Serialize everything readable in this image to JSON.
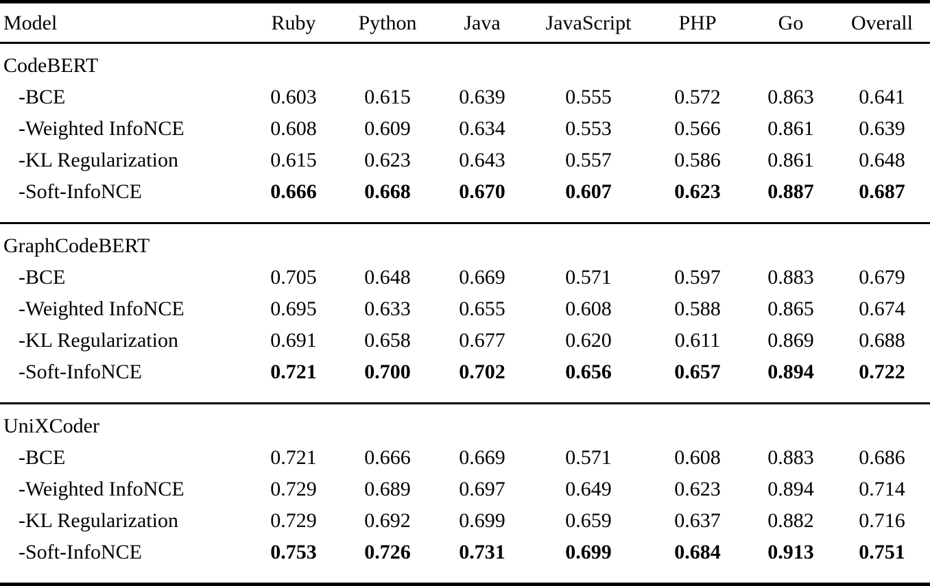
{
  "chart_data": {
    "type": "table",
    "columns": [
      "Model",
      "Ruby",
      "Python",
      "Java",
      "JavaScript",
      "PHP",
      "Go",
      "Overall"
    ],
    "sections": [
      {
        "group": "CodeBERT",
        "rows": [
          {
            "label": "-BCE",
            "values": [
              "0.603",
              "0.615",
              "0.639",
              "0.555",
              "0.572",
              "0.863",
              "0.641"
            ],
            "bold": false
          },
          {
            "label": "-Weighted InfoNCE",
            "values": [
              "0.608",
              "0.609",
              "0.634",
              "0.553",
              "0.566",
              "0.861",
              "0.639"
            ],
            "bold": false
          },
          {
            "label": "-KL Regularization",
            "values": [
              "0.615",
              "0.623",
              "0.643",
              "0.557",
              "0.586",
              "0.861",
              "0.648"
            ],
            "bold": false
          },
          {
            "label": "-Soft-InfoNCE",
            "values": [
              "0.666",
              "0.668",
              "0.670",
              "0.607",
              "0.623",
              "0.887",
              "0.687"
            ],
            "bold": true
          }
        ]
      },
      {
        "group": "GraphCodeBERT",
        "rows": [
          {
            "label": "-BCE",
            "values": [
              "0.705",
              "0.648",
              "0.669",
              "0.571",
              "0.597",
              "0.883",
              "0.679"
            ],
            "bold": false
          },
          {
            "label": "-Weighted InfoNCE",
            "values": [
              "0.695",
              "0.633",
              "0.655",
              "0.608",
              "0.588",
              "0.865",
              "0.674"
            ],
            "bold": false
          },
          {
            "label": "-KL Regularization",
            "values": [
              "0.691",
              "0.658",
              "0.677",
              "0.620",
              "0.611",
              "0.869",
              "0.688"
            ],
            "bold": false
          },
          {
            "label": "-Soft-InfoNCE",
            "values": [
              "0.721",
              "0.700",
              "0.702",
              "0.656",
              "0.657",
              "0.894",
              "0.722"
            ],
            "bold": true
          }
        ]
      },
      {
        "group": "UniXCoder",
        "rows": [
          {
            "label": "-BCE",
            "values": [
              "0.721",
              "0.666",
              "0.669",
              "0.571",
              "0.608",
              "0.883",
              "0.686"
            ],
            "bold": false
          },
          {
            "label": "-Weighted InfoNCE",
            "values": [
              "0.729",
              "0.689",
              "0.697",
              "0.649",
              "0.623",
              "0.894",
              "0.714"
            ],
            "bold": false
          },
          {
            "label": "-KL Regularization",
            "values": [
              "0.729",
              "0.692",
              "0.699",
              "0.659",
              "0.637",
              "0.882",
              "0.716"
            ],
            "bold": false
          },
          {
            "label": "-Soft-InfoNCE",
            "values": [
              "0.753",
              "0.726",
              "0.731",
              "0.699",
              "0.684",
              "0.913",
              "0.751"
            ],
            "bold": true
          }
        ]
      }
    ],
    "layout": {
      "rule_color": "#000000",
      "background": "#ffffff",
      "text_color": "#000000",
      "bold_rule": "best values per section are bold"
    }
  }
}
